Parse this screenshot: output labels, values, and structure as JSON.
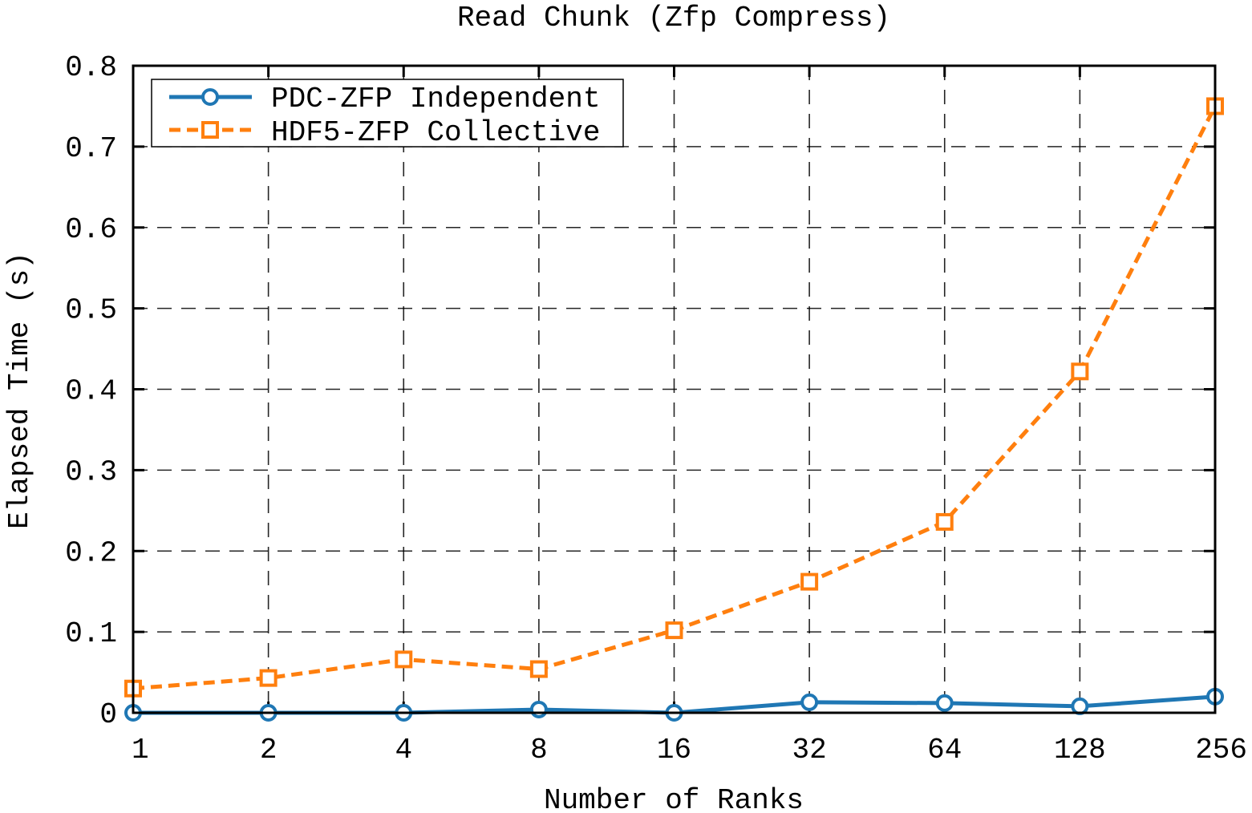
{
  "chart_data": {
    "type": "line",
    "title": "Read Chunk (Zfp Compress)",
    "xlabel": "Number of Ranks",
    "ylabel": "Elapsed Time (s)",
    "categories": [
      "1",
      "2",
      "4",
      "8",
      "16",
      "32",
      "64",
      "128",
      "256"
    ],
    "y_ticks": [
      "0",
      "0.1",
      "0.2",
      "0.3",
      "0.4",
      "0.5",
      "0.6",
      "0.7",
      "0.8"
    ],
    "ylim": [
      0,
      0.8
    ],
    "grid": true,
    "legend_position": "top-left",
    "series": [
      {
        "name": "PDC-ZFP Independent",
        "color": "#1f77b4",
        "marker": "circle",
        "line_style": "solid",
        "values": [
          0.0,
          0.0,
          0.0,
          0.004,
          0.0,
          0.013,
          0.012,
          0.008,
          0.02
        ]
      },
      {
        "name": "HDF5-ZFP Collective",
        "color": "#ff7f0e",
        "marker": "square",
        "line_style": "dashed",
        "values": [
          0.03,
          0.043,
          0.066,
          0.054,
          0.102,
          0.162,
          0.236,
          0.422,
          0.75
        ]
      }
    ]
  }
}
